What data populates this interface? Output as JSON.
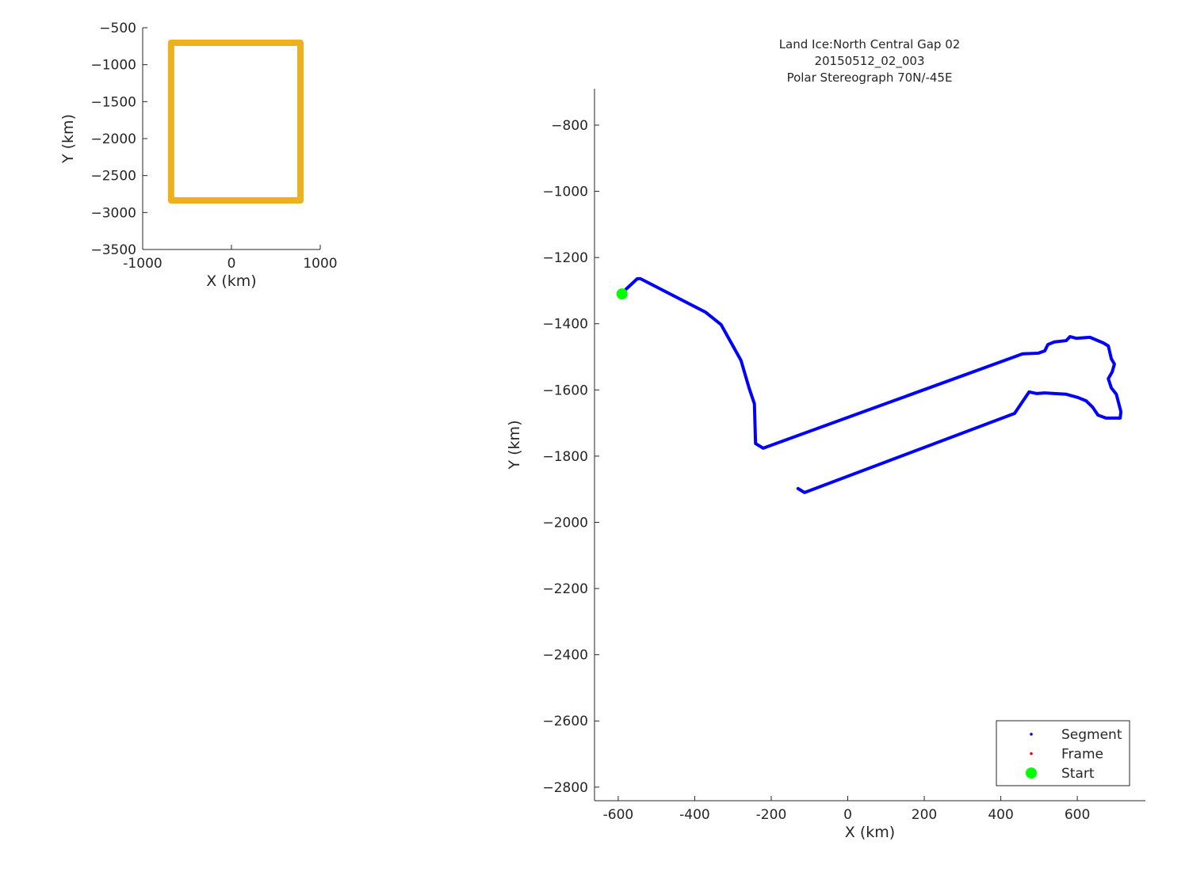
{
  "chart_data": [
    {
      "type": "line",
      "xlabel": "X (km)",
      "ylabel": "Y (km)",
      "xlim": [
        -1000,
        1000
      ],
      "ylim": [
        -3500,
        -500
      ],
      "xticks": [
        "-1000",
        "0",
        "1000"
      ],
      "yticks": [
        "-500",
        "-1000",
        "-1500",
        "-2000",
        "-2500",
        "-3000",
        "-3500"
      ],
      "xtick_values": [
        -1000,
        0,
        1000
      ],
      "ytick_values": [
        -500,
        -1000,
        -1500,
        -2000,
        -2500,
        -3000,
        -3500
      ],
      "grid": false,
      "series": [
        {
          "color": "#EDB120",
          "x": [
            -680,
            777,
            777,
            -680,
            -680
          ],
          "y": [
            -704,
            -704,
            -2836,
            -2836,
            -704
          ]
        }
      ]
    },
    {
      "type": "line",
      "title": [
        "Land Ice:North Central Gap 02",
        "20150512_02_003",
        "Polar Stereograph 70N/-45E"
      ],
      "xlabel": "X (km)",
      "ylabel": "Y (km)",
      "xlim": [
        -662,
        778
      ],
      "ylim": [
        -2841,
        -690
      ],
      "xticks": [
        "-600",
        "-400",
        "-200",
        "0",
        "200",
        "400",
        "600"
      ],
      "xtick_values": [
        -600,
        -400,
        -200,
        0,
        200,
        400,
        600
      ],
      "yticks": [
        "-800",
        "-1000",
        "-1200",
        "-1400",
        "-1600",
        "-1800",
        "-2000",
        "-2200",
        "-2400",
        "-2600",
        "-2800"
      ],
      "ytick_values": [
        -800,
        -1000,
        -1200,
        -1400,
        -1600,
        -1800,
        -2000,
        -2200,
        -2400,
        -2600,
        -2800
      ],
      "grid": false,
      "legend": {
        "placement": "bottom-right",
        "entries": [
          "Segment",
          "Frame",
          "Start"
        ]
      },
      "series": [
        {
          "name": "Segment",
          "color": "#0000FF",
          "x": [
            -590,
            -579,
            -550,
            -542,
            -372,
            -331,
            -279,
            -258,
            -244,
            -241,
            -221,
            457,
            498,
            515,
            523,
            540,
            571,
            581,
            598,
            633,
            668,
            681,
            689,
            697,
            691,
            681,
            689,
            702,
            714,
            712,
            675,
            654,
            640,
            623,
            602,
            571,
            540,
            515,
            494,
            474,
            436,
            -113,
            -130
          ],
          "y": [
            -1310,
            -1295,
            -1264,
            -1264,
            -1365,
            -1403,
            -1511,
            -1594,
            -1642,
            -1762,
            -1776,
            -1491,
            -1489,
            -1482,
            -1463,
            -1455,
            -1451,
            -1439,
            -1444,
            -1441,
            -1458,
            -1467,
            -1506,
            -1522,
            -1546,
            -1566,
            -1594,
            -1613,
            -1666,
            -1685,
            -1685,
            -1676,
            -1652,
            -1633,
            -1623,
            -1613,
            -1611,
            -1609,
            -1611,
            -1606,
            -1671,
            -1910,
            -1898
          ]
        },
        {
          "name": "Frame",
          "color": "#FF0000",
          "x": [],
          "y": []
        },
        {
          "name": "Start",
          "color": "#00FF00",
          "x": [
            -590
          ],
          "y": [
            -1310
          ]
        }
      ]
    }
  ]
}
